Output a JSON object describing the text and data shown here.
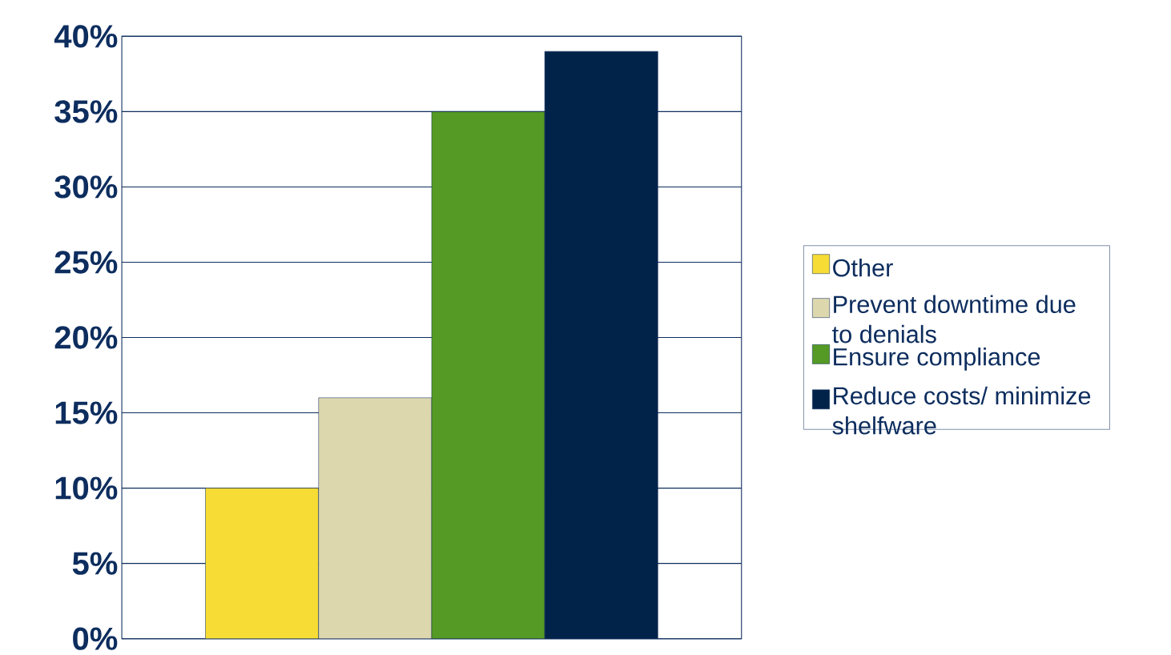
{
  "chart_data": {
    "type": "bar",
    "categories": [
      null
    ],
    "series": [
      {
        "name": "Other",
        "color": "#f7dc35",
        "values": [
          10
        ]
      },
      {
        "name": "Prevent downtime due to denials",
        "color": "#ddd7ae",
        "values": [
          16
        ]
      },
      {
        "name": "Ensure compliance",
        "color": "#559a24",
        "values": [
          35
        ]
      },
      {
        "name": "Reduce costs/ minimize shelfware",
        "color": "#022349",
        "values": [
          39
        ]
      }
    ],
    "ylim": [
      0,
      40
    ],
    "yticks": [
      {
        "value": 0,
        "label": "0%"
      },
      {
        "value": 5,
        "label": "5%"
      },
      {
        "value": 10,
        "label": "10%"
      },
      {
        "value": 15,
        "label": "15%"
      },
      {
        "value": 20,
        "label": "20%"
      },
      {
        "value": 25,
        "label": "25%"
      },
      {
        "value": 30,
        "label": "30%"
      },
      {
        "value": 35,
        "label": "35%"
      },
      {
        "value": 40,
        "label": "40%"
      }
    ],
    "grid": "y",
    "legend": "right"
  }
}
